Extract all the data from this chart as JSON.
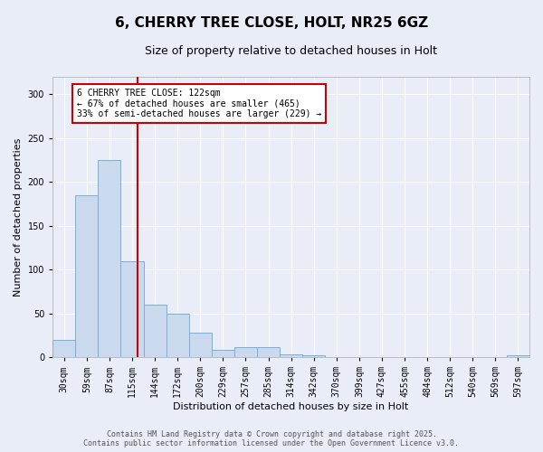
{
  "title_line1": "6, CHERRY TREE CLOSE, HOLT, NR25 6GZ",
  "title_line2": "Size of property relative to detached houses in Holt",
  "xlabel": "Distribution of detached houses by size in Holt",
  "ylabel": "Number of detached properties",
  "bins": [
    "30sqm",
    "59sqm",
    "87sqm",
    "115sqm",
    "144sqm",
    "172sqm",
    "200sqm",
    "229sqm",
    "257sqm",
    "285sqm",
    "314sqm",
    "342sqm",
    "370sqm",
    "399sqm",
    "427sqm",
    "455sqm",
    "484sqm",
    "512sqm",
    "540sqm",
    "569sqm",
    "597sqm"
  ],
  "values": [
    20,
    185,
    225,
    110,
    60,
    50,
    28,
    8,
    12,
    12,
    3,
    2,
    0,
    0,
    0,
    0,
    0,
    0,
    0,
    0,
    2
  ],
  "bar_color": "#cad9ed",
  "bar_edge_color": "#7aafd4",
  "annotation_title": "6 CHERRY TREE CLOSE: 122sqm",
  "annotation_line1": "← 67% of detached houses are smaller (465)",
  "annotation_line2": "33% of semi-detached houses are larger (229) →",
  "annotation_box_facecolor": "#ffffff",
  "annotation_box_edgecolor": "#cc0000",
  "red_line_color": "#cc0000",
  "footer_line1": "Contains HM Land Registry data © Crown copyright and database right 2025.",
  "footer_line2": "Contains public sector information licensed under the Open Government Licence v3.0.",
  "ylim": [
    0,
    320
  ],
  "yticks": [
    0,
    50,
    100,
    150,
    200,
    250,
    300
  ],
  "background_color": "#e8edf8",
  "plot_background_color": "#e8edf8",
  "grid_color": "#ffffff",
  "title1_fontsize": 11,
  "title2_fontsize": 9,
  "xlabel_fontsize": 8,
  "ylabel_fontsize": 8,
  "tick_fontsize": 7,
  "annotation_fontsize": 7,
  "footer_fontsize": 6
}
